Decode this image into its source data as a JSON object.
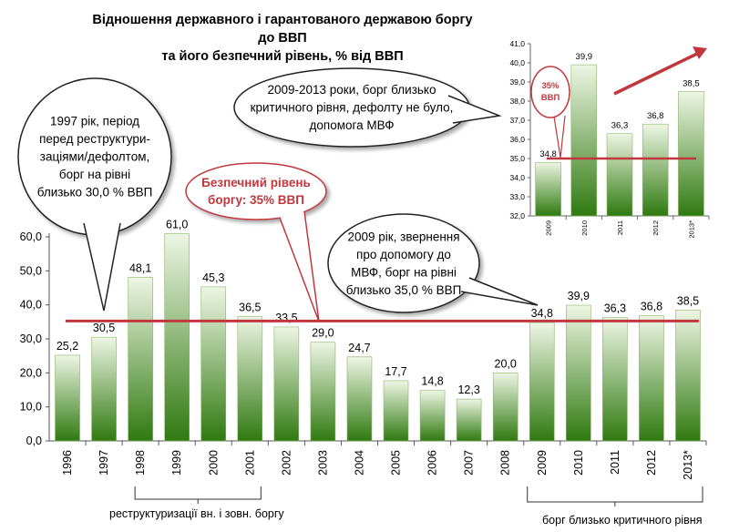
{
  "title": {
    "line1": "Відношення державного і гарантованого державою боргу до ВВП",
    "line2": "та його безпечний рівень, % від ВВП"
  },
  "colors": {
    "bar_dark": "#2f7a10",
    "bar_light": "#eef6e4",
    "bar_border": "#8ab46a",
    "safe_line": "#c0383e",
    "arrow": "#c0383e",
    "callout_border": "#222222",
    "safe_callout_border": "#c0383e",
    "safe_callout_text": "#c0383e"
  },
  "callouts": {
    "c1997": [
      "1997 рік, період",
      "перед реструктури-",
      "заціями/дефолтом,",
      "борг на рівні",
      "близько 30,0 % ВВП"
    ],
    "safe": [
      "Безпечний рівень",
      "боргу: 35% ВВП"
    ],
    "c2009": [
      "2009 рік, звернення",
      "про допомогу до",
      "МВФ, борг на рівні",
      "близько 35,0 % ВВП"
    ],
    "c2013": [
      "2009-2013 роки, борг близько",
      "критичного рівня, дефолту  не було,",
      "допомога МВФ"
    ],
    "inset_safe": [
      "35%",
      "ВВП"
    ]
  },
  "footnotes": {
    "left": "реструктуризації вн. і зовн. боргу",
    "right": "борг близько критичного рівня"
  },
  "chart_data": [
    {
      "type": "bar",
      "categories": [
        "1996",
        "1997",
        "1998",
        "1999",
        "2000",
        "2001",
        "2002",
        "2003",
        "2004",
        "2005",
        "2006",
        "2007",
        "2008",
        "2009",
        "2010",
        "2011",
        "2012",
        "2013*"
      ],
      "values": [
        25.2,
        30.5,
        48.1,
        61.0,
        45.3,
        36.5,
        33.5,
        29.0,
        24.7,
        17.7,
        14.8,
        12.3,
        20.0,
        34.8,
        39.9,
        36.3,
        36.8,
        38.5
      ],
      "value_labels": [
        "25,2",
        "30,5",
        "48,1",
        "61,0",
        "45,3",
        "36,5",
        "33,5",
        "29,0",
        "24,7",
        "17,7",
        "14,8",
        "12,3",
        "20,0",
        "34,8",
        "39,9",
        "36,3",
        "36,8",
        "38,5"
      ],
      "ylim": [
        0,
        60
      ],
      "yticks": [
        0,
        10,
        20,
        30,
        40,
        50,
        60
      ],
      "ytick_labels": [
        "0,0",
        "10,0",
        "20,0",
        "30,0",
        "40,0",
        "50,0",
        "60,0"
      ],
      "reference_line": 35,
      "grid": false
    },
    {
      "type": "bar",
      "categories": [
        "2009",
        "2010",
        "2011",
        "2012",
        "2013*"
      ],
      "values": [
        34.8,
        39.9,
        36.3,
        36.8,
        38.5
      ],
      "value_labels": [
        "34,8",
        "39,9",
        "36,3",
        "36,8",
        "38,5"
      ],
      "ylim": [
        32,
        41
      ],
      "yticks": [
        32,
        33,
        34,
        35,
        36,
        37,
        38,
        39,
        40,
        41
      ],
      "ytick_labels": [
        "32,0",
        "33,0",
        "34,0",
        "35,0",
        "36,0",
        "37,0",
        "38,0",
        "39,0",
        "40,0",
        "41,0"
      ],
      "reference_line": 35,
      "grid": false
    }
  ]
}
